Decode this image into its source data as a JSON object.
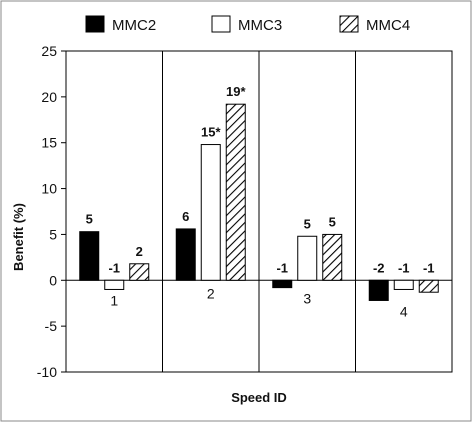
{
  "chart_data": {
    "type": "bar",
    "title": "",
    "xlabel": "Speed ID",
    "ylabel": "Benefit (%)",
    "ylim": [
      -10,
      25
    ],
    "yticks": [
      -10,
      -5,
      0,
      5,
      10,
      15,
      20,
      25
    ],
    "grid": "vertical category separators",
    "legend": "top",
    "categories": [
      "1",
      "2",
      "3",
      "4"
    ],
    "series": [
      {
        "name": "MMC2",
        "values": [
          5.3,
          5.6,
          -0.8,
          -2.2
        ],
        "labels": [
          "5",
          "6",
          "-1",
          "-2"
        ],
        "fill": "black",
        "color": "#000000"
      },
      {
        "name": "MMC3",
        "values": [
          -1.0,
          14.8,
          4.8,
          -1.0
        ],
        "labels": [
          "-1",
          "15*",
          "5",
          "-1"
        ],
        "fill": "white",
        "color": "#ffffff"
      },
      {
        "name": "MMC4",
        "values": [
          1.8,
          19.2,
          5.0,
          -1.3
        ],
        "labels": [
          "2",
          "19*",
          "5",
          "-1"
        ],
        "fill": "hatched",
        "color": "#000000"
      }
    ]
  }
}
